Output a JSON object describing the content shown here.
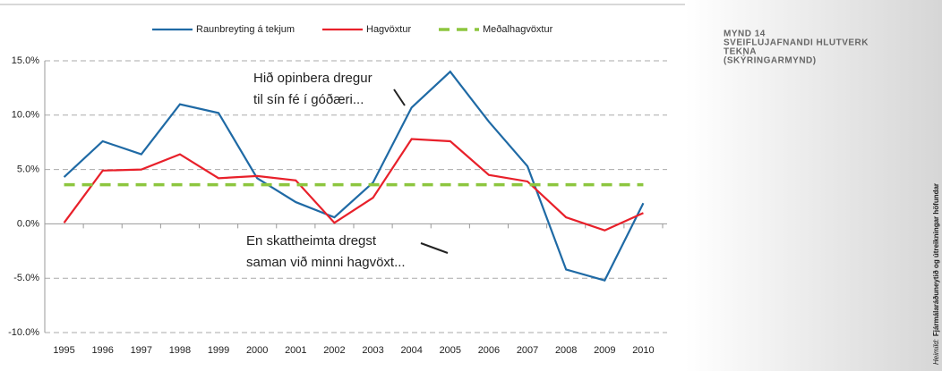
{
  "chart_data": {
    "type": "line",
    "categories": [
      "1995",
      "1996",
      "1997",
      "1998",
      "1999",
      "2000",
      "2001",
      "2002",
      "2003",
      "2004",
      "2005",
      "2006",
      "2007",
      "2008",
      "2009",
      "2010"
    ],
    "series": [
      {
        "name": "Raunbreyting á tekjum",
        "color": "#1f6aa5",
        "values": [
          4.3,
          7.6,
          6.4,
          11.0,
          10.2,
          4.2,
          2.0,
          0.6,
          3.8,
          10.7,
          14.0,
          9.4,
          5.3,
          -4.2,
          -5.2,
          1.9
        ]
      },
      {
        "name": "Hagvöxtur",
        "color": "#e8202a",
        "values": [
          0.1,
          4.9,
          5.0,
          6.4,
          4.2,
          4.4,
          4.0,
          0.1,
          2.4,
          7.8,
          7.6,
          4.5,
          3.9,
          0.6,
          -0.6,
          1.0
        ]
      },
      {
        "name": "Meðalhagvöxtur",
        "color": "#8dc63f",
        "dashed": true,
        "values": [
          3.6,
          3.6,
          3.6,
          3.6,
          3.6,
          3.6,
          3.6,
          3.6,
          3.6,
          3.6,
          3.6,
          3.6,
          3.6,
          3.6,
          3.6,
          3.6
        ]
      }
    ],
    "ylim": [
      -10,
      15
    ],
    "yticks": [
      {
        "value": -10,
        "label": "-10.0%"
      },
      {
        "value": -5,
        "label": "-5.0%"
      },
      {
        "value": 0,
        "label": "0.0%"
      },
      {
        "value": 5,
        "label": "5.0%"
      },
      {
        "value": 10,
        "label": "10.0%"
      },
      {
        "value": 15,
        "label": "15.0%"
      }
    ],
    "grid": true,
    "legend": "top",
    "annotations": [
      {
        "lines": [
          "Hið opinbera dregur",
          "til sín fé í góðæri..."
        ]
      },
      {
        "lines": [
          "En skattheimta dregst",
          "saman við minni hagvöxt..."
        ]
      }
    ],
    "side_title": [
      "MYND 14",
      "SVEIFLUJAFNANDI HLUTVERK",
      "TEKNA",
      "(SKÝRINGARMYND)"
    ],
    "source_label": "Heimild:",
    "source": "Fjármálaráðuneytið og útreikningar höfundar"
  }
}
